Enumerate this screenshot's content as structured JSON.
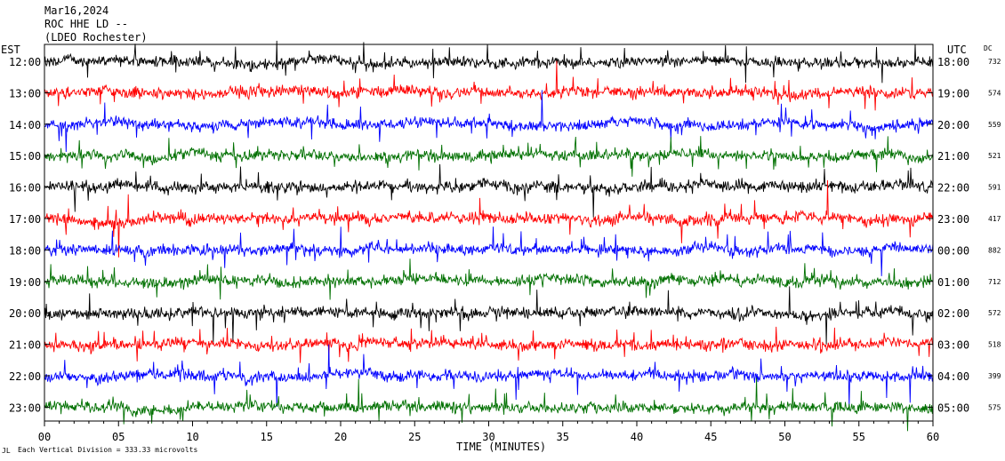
{
  "header": {
    "line1": "Mar16,2024",
    "line2": "ROC HHE LD --",
    "line3": "(LDEO Rochester)"
  },
  "left_axis_label": "EST",
  "right_axis_label": "UTC",
  "dc_label": "DC",
  "footer": {
    "xlabel": "TIME (MINUTES)",
    "scale_note": "Each Vertical Division = 333.33 microvolts",
    "corner_mark": "JL"
  },
  "chart_data": {
    "type": "line",
    "title": "ROC HHE LD --",
    "xlabel": "TIME (MINUTES)",
    "ylabel": "EST",
    "xlim": [
      0,
      60
    ],
    "x_ticks": [
      "00",
      "05",
      "10",
      "15",
      "20",
      "25",
      "30",
      "35",
      "40",
      "45",
      "50",
      "55",
      "60"
    ],
    "trace_colors": [
      "#000000",
      "#ff0000",
      "#0000ff",
      "#007000"
    ],
    "rows": [
      {
        "est": "12:00",
        "utc": "18:00",
        "dc": "732"
      },
      {
        "est": "13:00",
        "utc": "19:00",
        "dc": "574"
      },
      {
        "est": "14:00",
        "utc": "20:00",
        "dc": "559"
      },
      {
        "est": "15:00",
        "utc": "21:00",
        "dc": "521"
      },
      {
        "est": "16:00",
        "utc": "22:00",
        "dc": "591"
      },
      {
        "est": "17:00",
        "utc": "23:00",
        "dc": "417"
      },
      {
        "est": "18:00",
        "utc": "00:00",
        "dc": "882"
      },
      {
        "est": "19:00",
        "utc": "01:00",
        "dc": "712"
      },
      {
        "est": "20:00",
        "utc": "02:00",
        "dc": "572"
      },
      {
        "est": "21:00",
        "utc": "03:00",
        "dc": "518"
      },
      {
        "est": "22:00",
        "utc": "04:00",
        "dc": "399"
      },
      {
        "est": "23:00",
        "utc": "05:00",
        "dc": "575"
      }
    ],
    "grid": false
  }
}
